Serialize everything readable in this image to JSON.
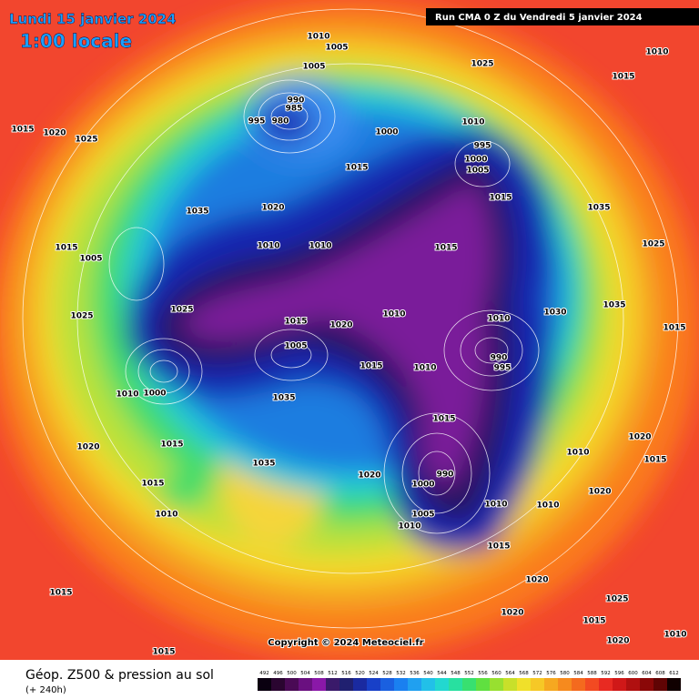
{
  "header": {
    "date": "Lundi 15 janvier 2024",
    "time": "1:00 locale",
    "run": "Run CMA 0 Z du Vendredi 5 janvier 2024"
  },
  "map": {
    "pressure_labels": [
      1010,
      1005,
      1005,
      990,
      985,
      995,
      980,
      1000,
      1025,
      1010,
      1015,
      1015,
      1020,
      1025,
      1010,
      995,
      1000,
      1005,
      1015,
      1015,
      1035,
      1020,
      1010,
      1010,
      1015,
      1025,
      1020,
      1010,
      1015,
      1005,
      1010,
      1000,
      1035,
      990,
      995,
      1010,
      1030,
      1035,
      1025,
      1035,
      1015,
      1010,
      1015,
      990,
      1000,
      1005,
      1010,
      1020,
      1035,
      1015,
      1020,
      1015,
      1010,
      1015,
      1015,
      1020,
      1015,
      1020,
      1025,
      1015,
      1010,
      1020,
      1010,
      1020,
      1015,
      1020,
      1015,
      1025,
      1005,
      1015,
      1010,
      1010
    ],
    "copyright": "Copyright © 2024 Meteociel.fr"
  },
  "footer": {
    "title": "Géop. Z500 & pression au sol",
    "lead": "(+ 240h)",
    "scale": [
      492,
      496,
      500,
      504,
      508,
      512,
      516,
      520,
      524,
      528,
      532,
      536,
      540,
      544,
      548,
      552,
      556,
      560,
      564,
      568,
      572,
      576,
      580,
      584,
      588,
      592,
      596,
      600,
      604,
      608,
      612
    ]
  }
}
